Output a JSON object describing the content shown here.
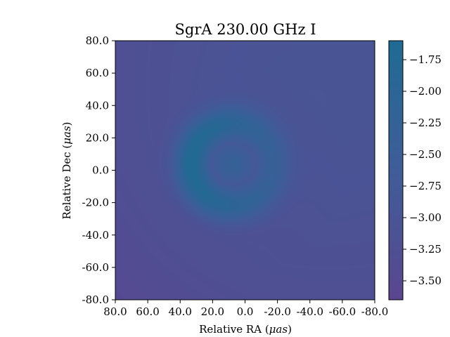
{
  "chart_data": {
    "type": "heatmap",
    "title": "SgrA 230.00 GHz I",
    "xlabel_prefix": "Relative RA (",
    "xlabel_unit": "μas",
    "xlabel_suffix": ")",
    "ylabel_prefix": "Relative Dec (",
    "ylabel_unit": "μas",
    "ylabel_suffix": ")",
    "xlim": [
      80,
      -80
    ],
    "ylim": [
      -80,
      80
    ],
    "x_ticks": [
      80,
      60,
      40,
      20,
      0,
      -20,
      -40,
      -60,
      -80
    ],
    "x_tick_labels": [
      "80.0",
      "60.0",
      "40.0",
      "20.0",
      "0.0",
      "-20.0",
      "-40.0",
      "-60.0",
      "-80.0"
    ],
    "y_ticks": [
      80,
      60,
      40,
      20,
      0,
      -20,
      -40,
      -60,
      -80
    ],
    "y_tick_labels": [
      "80.0",
      "60.0",
      "40.0",
      "20.0",
      "0.0",
      "-20.0",
      "-40.0",
      "-60.0",
      "-80.0"
    ],
    "colorbar": {
      "range": [
        -3.65,
        -1.6
      ],
      "ticks": [
        -1.75,
        -2.0,
        -2.25,
        -2.5,
        -2.75,
        -3.0,
        -3.25,
        -3.5
      ],
      "tick_labels": [
        "−1.75",
        "−2.00",
        "−2.25",
        "−2.50",
        "−2.75",
        "−3.00",
        "−3.25",
        "−3.50"
      ],
      "color_low": "#5a4690",
      "color_mid": "#3f5d98",
      "color_high": "#1f6b93"
    },
    "image": {
      "description_free_params": true,
      "ring_center": [
        8,
        4
      ],
      "ring_radius": 25,
      "ring_peak_value": -1.65,
      "background_value_min": -3.6,
      "background_value_max": -2.9
    },
    "grid": false
  }
}
